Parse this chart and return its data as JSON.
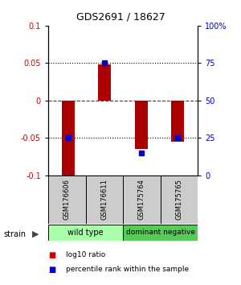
{
  "title": "GDS2691 / 18627",
  "samples": [
    "GSM176606",
    "GSM176611",
    "GSM175764",
    "GSM175765"
  ],
  "log10_ratios": [
    -0.102,
    0.048,
    -0.065,
    -0.055
  ],
  "percentile_ranks": [
    0.25,
    0.75,
    0.15,
    0.25
  ],
  "ylim_left": [
    -0.1,
    0.1
  ],
  "ylim_right": [
    0.0,
    1.0
  ],
  "yticks_left": [
    -0.1,
    -0.05,
    0.0,
    0.05,
    0.1
  ],
  "yticks_right": [
    0.0,
    0.25,
    0.5,
    0.75,
    1.0
  ],
  "ytick_labels_right": [
    "0",
    "25",
    "50",
    "75",
    "100%"
  ],
  "ytick_labels_left": [
    "-0.1",
    "-0.05",
    "0",
    "0.05",
    "0.1"
  ],
  "bar_color": "#aa0000",
  "dot_color": "#0000cc",
  "zero_line_color": "#cc0000",
  "grid_color": "#000000",
  "groups": [
    {
      "label": "wild type",
      "indices": [
        0,
        1
      ],
      "color": "#aaffaa"
    },
    {
      "label": "dominant negative",
      "indices": [
        2,
        3
      ],
      "color": "#55cc55"
    }
  ],
  "legend_ratio_color": "#cc0000",
  "legend_pct_color": "#0000cc",
  "legend_ratio_label": "log10 ratio",
  "legend_pct_label": "percentile rank within the sample",
  "sample_box_color": "#cccccc",
  "strain_label": "strain",
  "background_color": "#ffffff"
}
